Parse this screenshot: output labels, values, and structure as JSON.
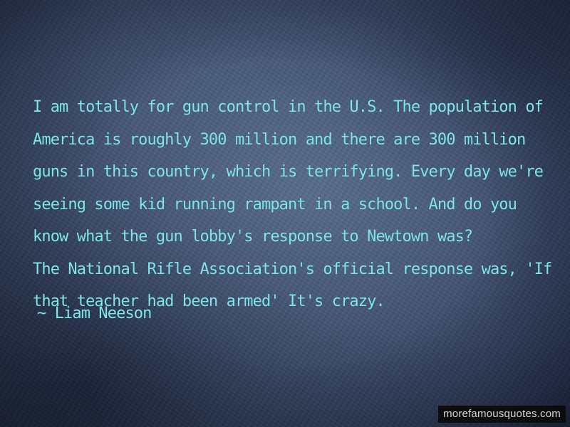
{
  "quote": {
    "lines": [
      "I am totally for gun control in the U.S. The population of",
      "America is roughly 300 million and there are 300 million",
      "guns in this country, which is terrifying. Every day we're",
      "seeing some kid running rampant in a school. And do you",
      "know what the gun lobby's response to Newtown was?",
      "The National Rifle Association's official response was, 'If",
      "that teacher had been armed' It's crazy."
    ],
    "author": "~ Liam Neeson"
  },
  "watermark": "morefamousquotes.com",
  "colors": {
    "text": "#7fe6ea",
    "background": "#4d5f80",
    "watermark_bg": "#0c0c0c",
    "watermark_text": "#d6d6d6"
  }
}
